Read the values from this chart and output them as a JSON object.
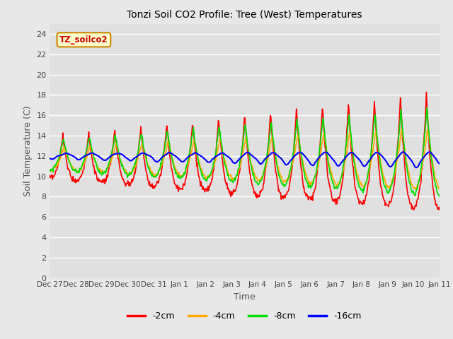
{
  "title": "Tonzi Soil CO2 Profile: Tree (West) Temperatures",
  "xlabel": "Time",
  "ylabel": "Soil Temperature (C)",
  "ylim": [
    0,
    25
  ],
  "yticks": [
    0,
    2,
    4,
    6,
    8,
    10,
    12,
    14,
    16,
    18,
    20,
    22,
    24
  ],
  "fig_bg": "#e8e8e8",
  "plot_bg": "#e0e0e0",
  "legend_label": "TZ_soilco2",
  "legend_bg": "#ffffcc",
  "legend_border": "#cc8800",
  "series_labels": [
    "-2cm",
    "-4cm",
    "-8cm",
    "-16cm"
  ],
  "series_colors": [
    "#ff0000",
    "#ffaa00",
    "#00dd00",
    "#0000ff"
  ],
  "series_linewidths": [
    1.2,
    1.2,
    1.2,
    1.5
  ],
  "tick_dates": [
    "Dec 27",
    "Dec 28",
    "Dec 29",
    "Dec 30",
    "Dec 31",
    "Jan 1",
    "Jan 2",
    "Jan 3",
    "Jan 4",
    "Jan 5",
    "Jan 6",
    "Jan 7",
    "Jan 8",
    "Jan 9",
    "Jan 10",
    "Jan 11"
  ],
  "tick_positions": [
    0,
    1,
    2,
    3,
    4,
    5,
    6,
    7,
    8,
    9,
    10,
    11,
    12,
    13,
    14,
    15
  ]
}
